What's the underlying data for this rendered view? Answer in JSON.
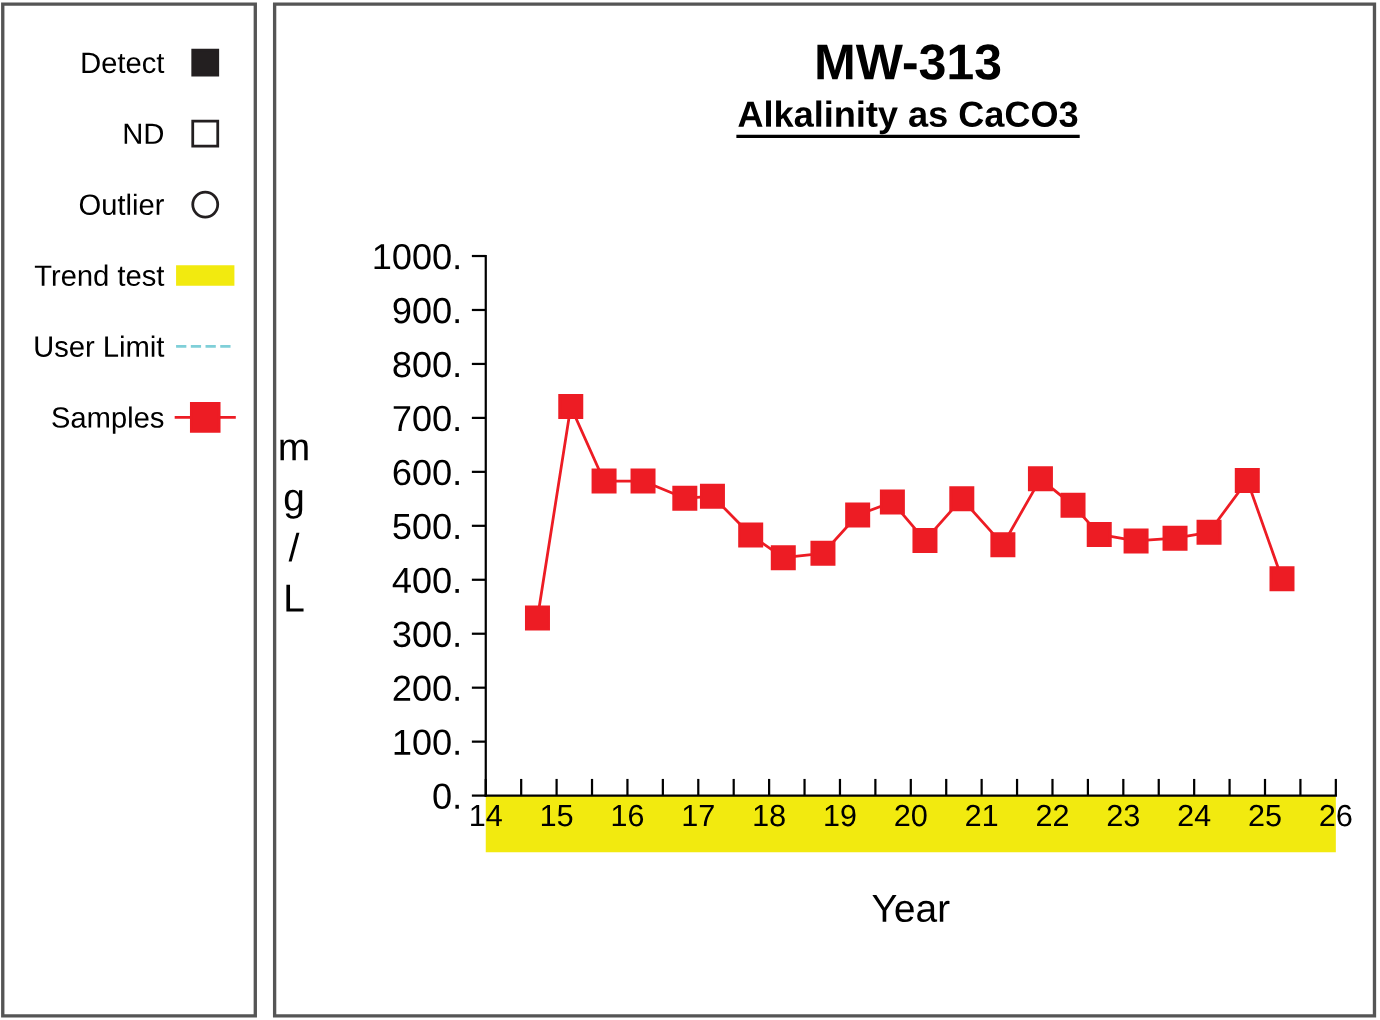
{
  "chart_data": {
    "type": "line",
    "title": "MW-313",
    "subtitle": "Alkalinity as CaCO3",
    "xlabel": "Year",
    "ylabel": "mg/L",
    "series": [
      {
        "name": "Detect",
        "type": "scatter",
        "color": "#231f20",
        "marker": "square"
      },
      {
        "name": "ND",
        "type": "scatter",
        "color": "#ffffff",
        "marker": "square"
      },
      {
        "name": "Outlier",
        "type": "scatter",
        "color": "#ffffff",
        "marker": "circle"
      },
      {
        "name": "Trend test",
        "type": "area",
        "color": "#f2ea0f"
      },
      {
        "name": "User Limit",
        "type": "line",
        "color": "#7fcfd8",
        "line_style": "dashed",
        "marker": "none"
      },
      {
        "name": "Samples",
        "color": "#ed1c24",
        "marker": "square",
        "line_style": "solid",
        "x": [
          14.73,
          15.2,
          15.67,
          16.22,
          16.81,
          17.2,
          17.74,
          18.2,
          18.76,
          19.25,
          19.74,
          20.2,
          20.72,
          21.3,
          21.83,
          22.29,
          22.66,
          23.18,
          23.73,
          24.21,
          24.75,
          25.24
        ],
        "values": [
          329,
          721,
          583,
          583,
          551,
          555,
          483,
          441,
          449,
          520,
          544,
          473,
          550,
          465,
          587,
          538,
          484,
          472,
          477,
          488,
          584,
          402
        ]
      }
    ],
    "xlim": [
      14,
      26
    ],
    "xticks": [
      14,
      {
        "value": 14.5,
        "label": null
      },
      15,
      {
        "value": 15.5,
        "label": null
      },
      16,
      {
        "value": 16.5,
        "label": null
      },
      17,
      {
        "value": 17.5,
        "label": null
      },
      18,
      {
        "value": 18.5,
        "label": null
      },
      19,
      {
        "value": 19.5,
        "label": null
      },
      20,
      {
        "value": 20.5,
        "label": null
      },
      21,
      {
        "value": 21.5,
        "label": null
      },
      22,
      {
        "value": 22.5,
        "label": null
      },
      23,
      {
        "value": 23.5,
        "label": null
      },
      24,
      {
        "value": 24.5,
        "label": null
      },
      25,
      {
        "value": 25.5,
        "label": null
      },
      26
    ],
    "ylim": [
      0,
      1000
    ],
    "yticks": [
      {
        "value": 0,
        "label": "0."
      },
      {
        "value": 100,
        "label": "100."
      },
      {
        "value": 200,
        "label": "200."
      },
      {
        "value": 300,
        "label": "300."
      },
      {
        "value": 400,
        "label": "400."
      },
      {
        "value": 500,
        "label": "500."
      },
      {
        "value": 600,
        "label": "600."
      },
      {
        "value": 700,
        "label": "700."
      },
      {
        "value": 800,
        "label": "800."
      },
      {
        "value": 900,
        "label": "900."
      },
      {
        "value": 1000,
        "label": "1000."
      }
    ],
    "grid": false,
    "legend": "left"
  }
}
